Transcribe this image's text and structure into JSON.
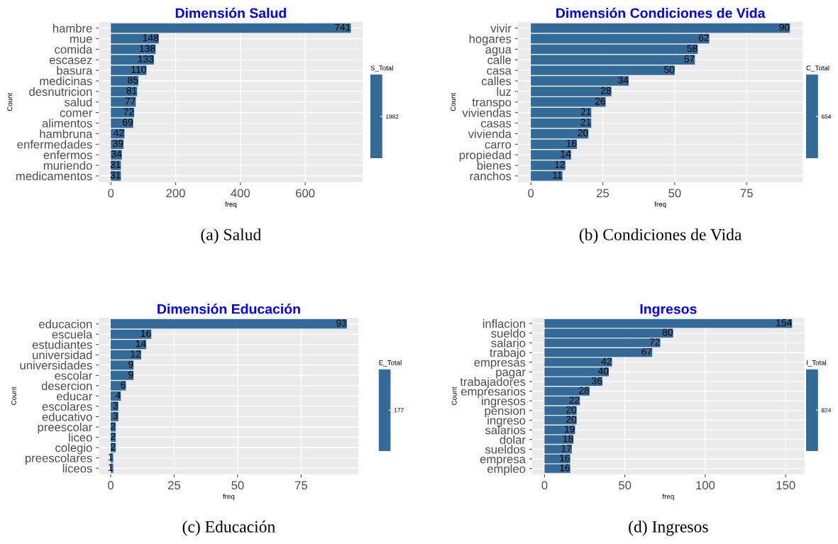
{
  "chart_data": [
    {
      "type": "bar",
      "orientation": "horizontal",
      "title": "Dimensión Salud",
      "xlabel": "freq",
      "ylabel": "Count",
      "legend_title": "S_Total",
      "grid": true,
      "data_labels": true,
      "color": "#336a98",
      "categories": [
        "hambre",
        "mue",
        "comida",
        "escasez",
        "basura",
        "medicinas",
        "desnutricion",
        "salud",
        "comer",
        "alimentos",
        "hambruna",
        "enfermedades",
        "enfermos",
        "muriendo",
        "medicamentos"
      ],
      "values": [
        741,
        148,
        138,
        133,
        110,
        85,
        81,
        77,
        72,
        69,
        42,
        39,
        34,
        31,
        31
      ],
      "xlim": [
        -37,
        778
      ],
      "xticks": [
        0,
        200,
        400,
        600
      ],
      "annotations": [
        "1982",
        "(a) Salud"
      ]
    },
    {
      "type": "bar",
      "orientation": "horizontal",
      "title": "Dimensión Condiciones de Vida",
      "xlabel": "freq",
      "ylabel": "Count",
      "legend_title": "C_Total",
      "grid": true,
      "data_labels": true,
      "color": "#336a98",
      "categories": [
        "vivir",
        "hogares",
        "agua",
        "calle",
        "casa",
        "calles",
        "luz",
        "transpo",
        "viviendas",
        "casas",
        "vivienda",
        "carro",
        "propiedad",
        "bienes",
        "ranchos"
      ],
      "values": [
        90,
        62,
        58,
        57,
        50,
        34,
        28,
        26,
        21,
        21,
        20,
        16,
        14,
        12,
        11
      ],
      "xlim": [
        -4.5,
        94.5
      ],
      "xticks": [
        0,
        25,
        50,
        75
      ],
      "annotations": [
        "654",
        "(b) Condiciones de Vida"
      ]
    },
    {
      "type": "bar",
      "orientation": "horizontal",
      "title": "Dimensión Educación",
      "xlabel": "freq",
      "ylabel": "Count",
      "legend_title": "E_Total",
      "grid": true,
      "data_labels": true,
      "color": "#336a98",
      "categories": [
        "educacion",
        "escuela",
        "estudiantes",
        "universidad",
        "universidades",
        "escolar",
        "desercion",
        "educar",
        "escolares",
        "educativo",
        "preescolar",
        "liceo",
        "colegio",
        "preescolares",
        "liceos"
      ],
      "values": [
        93,
        16,
        14,
        12,
        9,
        9,
        6,
        4,
        3,
        3,
        2,
        2,
        2,
        1,
        1
      ],
      "xlim": [
        -4.65,
        97.65
      ],
      "xticks": [
        0,
        25,
        50,
        75
      ],
      "annotations": [
        "177",
        "(c) Educación"
      ]
    },
    {
      "type": "bar",
      "orientation": "horizontal",
      "title": "Ingresos",
      "xlabel": "freq",
      "ylabel": "Count",
      "legend_title": "I_Total",
      "grid": true,
      "data_labels": true,
      "color": "#336a98",
      "categories": [
        "inflacion",
        "sueldo",
        "salario",
        "trabajo",
        "empresas",
        "pagar",
        "trabajadores",
        "empresarios",
        "ingresos",
        "pension",
        "ingreso",
        "salarios",
        "dolar",
        "sueldos",
        "empresa",
        "empleo"
      ],
      "values": [
        154,
        80,
        72,
        67,
        42,
        40,
        36,
        28,
        22,
        20,
        20,
        19,
        18,
        17,
        16,
        16
      ],
      "xlim": [
        -7.7,
        161.7
      ],
      "xticks": [
        0,
        50,
        100,
        150
      ],
      "annotations": [
        "824",
        "(d) Ingresos"
      ]
    }
  ]
}
